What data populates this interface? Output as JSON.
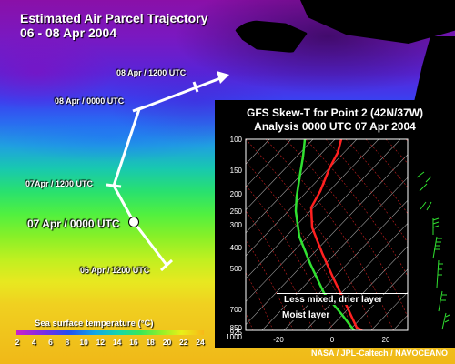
{
  "title": {
    "line1": "Estimated Air Parcel Trajectory",
    "line2": "06 - 08 Apr 2004"
  },
  "trajectory": {
    "labels": [
      {
        "id": "08-1200",
        "text": "08 Apr / 1200  UTC"
      },
      {
        "id": "08-0000",
        "text": "08 Apr / 0000  UTC"
      },
      {
        "id": "07-1200",
        "text": "07Apr / 1200  UTC"
      },
      {
        "id": "07-0000",
        "text": "07 Apr / 0000  UTC"
      },
      {
        "id": "06-1200",
        "text": "06 Apr / 1200  UTC"
      }
    ],
    "line_color": "#ffffff"
  },
  "skewt": {
    "title_line1": "GFS Skew-T for Point 2 (42N/37W)",
    "title_line2": "Analysis 0000 UTC  07 Apr 2004",
    "pressure_levels": [
      "100",
      "150",
      "200",
      "250",
      "300",
      "400",
      "500",
      "700",
      "850",
      "925",
      "1000"
    ],
    "temperature_ticks": [
      "-20",
      "0",
      "20"
    ],
    "annotations": {
      "upper": "Less mixed, drier layer",
      "lower": "Moist layer"
    },
    "temperature_color": "#ff2020",
    "dewpoint_color": "#30e030"
  },
  "legend": {
    "title": "Sea surface temperature (°C)",
    "ticks": [
      "2",
      "4",
      "6",
      "8",
      "10",
      "12",
      "14",
      "16",
      "18",
      "20",
      "22",
      "24"
    ]
  },
  "credit": "NASA / JPL-Caltech / NAVOCEANO"
}
